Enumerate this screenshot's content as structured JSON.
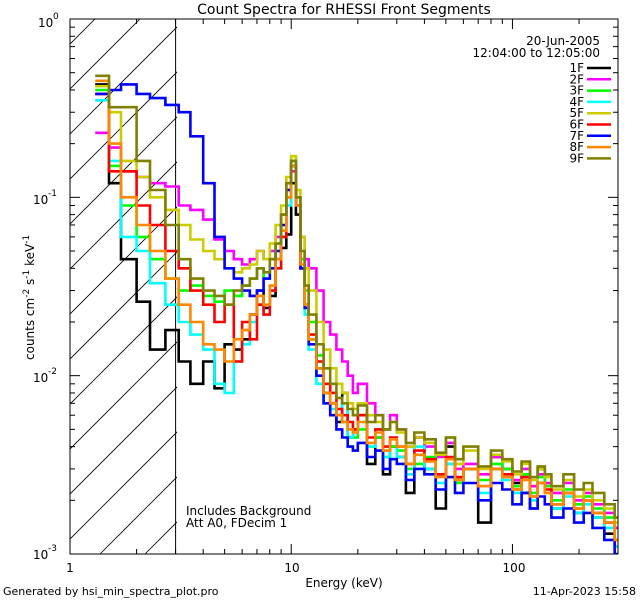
{
  "chart_data": {
    "type": "line",
    "title": "Count Spectra for RHESSI Front Segments",
    "xlabel": "Energy (keV)",
    "ylabel": "counts cm",
    "ylabel_sup1": "-2",
    "ylabel_mid": " s",
    "ylabel_sup2": "-1",
    "ylabel_end": " keV",
    "ylabel_sup3": "-1",
    "x_scale": "log",
    "y_scale": "log",
    "xlim": [
      1,
      300
    ],
    "ylim": [
      0.001,
      1
    ],
    "x_tick_labels": [
      {
        "value": 1,
        "label": "1"
      },
      {
        "value": 10,
        "label": "10"
      },
      {
        "value": 100,
        "label": "100"
      }
    ],
    "y_tick_labels": [
      {
        "value": 1,
        "base": "10",
        "exp": "0"
      },
      {
        "value": 0.1,
        "base": "10",
        "exp": "-1"
      },
      {
        "value": 0.01,
        "base": "10",
        "exp": "-2"
      },
      {
        "value": 0.001,
        "base": "10",
        "exp": "-3"
      }
    ],
    "hatched_region_max_energy": 3,
    "legend_position": "top-right",
    "date": "20-Jun-2005",
    "time_range": "12:04:00 to 12:05:00",
    "annotation_line1": "Includes Background",
    "annotation_line2": "Att A0, FDecim 1",
    "series": [
      {
        "name": "1F",
        "color": "#000000",
        "e": [
          1.3,
          1.5,
          1.7,
          2.0,
          2.3,
          2.7,
          3.1,
          3.5,
          4.0,
          4.5,
          5.0,
          5.5,
          6.0,
          6.5,
          7.0,
          7.5,
          8.0,
          8.5,
          9.0,
          9.5,
          10.0,
          10.5,
          11.0,
          11.5,
          12.0,
          13,
          14,
          15,
          16,
          17,
          18,
          19,
          20,
          22,
          24,
          26,
          28,
          30,
          33,
          36,
          40,
          45,
          50,
          55,
          60,
          70,
          80,
          90,
          100,
          110,
          120,
          130,
          140,
          150,
          170,
          190,
          210,
          230,
          260,
          290
        ],
        "v": [
          0.43,
          0.12,
          0.045,
          0.026,
          0.014,
          0.018,
          0.012,
          0.009,
          0.012,
          0.0085,
          0.015,
          0.014,
          0.016,
          0.022,
          0.03,
          0.024,
          0.028,
          0.045,
          0.052,
          0.062,
          0.12,
          0.08,
          0.04,
          0.025,
          0.016,
          0.011,
          0.008,
          0.007,
          0.0055,
          0.008,
          0.0045,
          0.005,
          0.006,
          0.0032,
          0.0045,
          0.0028,
          0.004,
          0.0035,
          0.0022,
          0.0045,
          0.003,
          0.0018,
          0.004,
          0.0026,
          0.003,
          0.0015,
          0.0035,
          0.003,
          0.0025,
          0.0022,
          0.0018,
          0.003,
          0.0024,
          0.0018,
          0.0022,
          0.0017,
          0.002,
          0.0016,
          0.0013,
          0.0011
        ]
      },
      {
        "name": "2F",
        "color": "#ff00ff",
        "e": [
          1.3,
          1.5,
          1.7,
          2.0,
          2.3,
          2.7,
          3.1,
          3.5,
          4.0,
          4.5,
          5.0,
          5.5,
          6.0,
          6.5,
          7.0,
          7.5,
          8.0,
          8.5,
          9.0,
          9.5,
          10.0,
          10.5,
          11.0,
          11.5,
          12.0,
          13,
          14,
          15,
          16,
          17,
          18,
          19,
          20,
          22,
          24,
          26,
          28,
          30,
          33,
          36,
          40,
          45,
          50,
          55,
          60,
          70,
          80,
          90,
          100,
          110,
          120,
          130,
          140,
          150,
          170,
          190,
          210,
          230,
          260,
          290
        ],
        "v": [
          0.23,
          0.19,
          0.14,
          0.13,
          0.12,
          0.115,
          0.09,
          0.085,
          0.075,
          0.058,
          0.05,
          0.045,
          0.042,
          0.045,
          0.05,
          0.045,
          0.05,
          0.06,
          0.08,
          0.12,
          0.14,
          0.1,
          0.06,
          0.045,
          0.04,
          0.03,
          0.02,
          0.017,
          0.014,
          0.012,
          0.01,
          0.008,
          0.009,
          0.007,
          0.006,
          0.005,
          0.006,
          0.005,
          0.004,
          0.0045,
          0.004,
          0.0035,
          0.0042,
          0.003,
          0.0032,
          0.0028,
          0.0035,
          0.003,
          0.0026,
          0.003,
          0.0024,
          0.0028,
          0.0025,
          0.0022,
          0.0025,
          0.002,
          0.0022,
          0.0019,
          0.0017,
          0.0014
        ]
      },
      {
        "name": "3F",
        "color": "#00ff00",
        "e": [
          1.3,
          1.5,
          1.7,
          2.0,
          2.3,
          2.7,
          3.1,
          3.5,
          4.0,
          4.5,
          5.0,
          5.5,
          6.0,
          6.5,
          7.0,
          7.5,
          8.0,
          8.5,
          9.0,
          9.5,
          10.0,
          10.5,
          11.0,
          11.5,
          12.0,
          13,
          14,
          15,
          16,
          17,
          18,
          19,
          20,
          22,
          24,
          26,
          28,
          30,
          33,
          36,
          40,
          45,
          50,
          55,
          60,
          70,
          80,
          90,
          100,
          110,
          120,
          130,
          140,
          150,
          170,
          190,
          210,
          230,
          260,
          290
        ],
        "v": [
          0.4,
          0.15,
          0.09,
          0.06,
          0.045,
          0.035,
          0.03,
          0.032,
          0.028,
          0.026,
          0.03,
          0.028,
          0.032,
          0.035,
          0.04,
          0.035,
          0.045,
          0.055,
          0.07,
          0.11,
          0.17,
          0.1,
          0.045,
          0.03,
          0.02,
          0.013,
          0.009,
          0.007,
          0.006,
          0.0055,
          0.005,
          0.0045,
          0.005,
          0.004,
          0.0045,
          0.0035,
          0.004,
          0.0038,
          0.003,
          0.0032,
          0.0035,
          0.0028,
          0.0032,
          0.0025,
          0.003,
          0.0026,
          0.0032,
          0.003,
          0.0024,
          0.0028,
          0.0022,
          0.0027,
          0.0024,
          0.002,
          0.0023,
          0.0019,
          0.0021,
          0.0018,
          0.0016,
          0.0012
        ]
      },
      {
        "name": "4F",
        "color": "#00ffff",
        "e": [
          1.3,
          1.5,
          1.7,
          2.0,
          2.3,
          2.7,
          3.1,
          3.5,
          4.0,
          4.5,
          5.0,
          5.5,
          6.0,
          6.5,
          7.0,
          7.5,
          8.0,
          8.5,
          9.0,
          9.5,
          10.0,
          10.5,
          11.0,
          11.5,
          12.0,
          13,
          14,
          15,
          16,
          17,
          18,
          19,
          20,
          22,
          24,
          26,
          28,
          30,
          33,
          36,
          40,
          45,
          50,
          55,
          60,
          70,
          80,
          90,
          100,
          110,
          120,
          130,
          140,
          150,
          170,
          190,
          210,
          230,
          260,
          290
        ],
        "v": [
          0.35,
          0.16,
          0.06,
          0.05,
          0.033,
          0.025,
          0.02,
          0.017,
          0.014,
          0.009,
          0.008,
          0.012,
          0.015,
          0.02,
          0.025,
          0.022,
          0.03,
          0.04,
          0.06,
          0.09,
          0.16,
          0.09,
          0.04,
          0.022,
          0.014,
          0.009,
          0.007,
          0.0065,
          0.006,
          0.007,
          0.0045,
          0.005,
          0.0055,
          0.004,
          0.005,
          0.0035,
          0.0045,
          0.0035,
          0.0028,
          0.004,
          0.003,
          0.0025,
          0.0032,
          0.0026,
          0.003,
          0.0022,
          0.003,
          0.0026,
          0.0022,
          0.0027,
          0.002,
          0.0025,
          0.0022,
          0.0018,
          0.0021,
          0.0017,
          0.0019,
          0.0016,
          0.0014,
          0.0011
        ]
      },
      {
        "name": "5F",
        "color": "#cccc00",
        "e": [
          1.3,
          1.5,
          1.7,
          2.0,
          2.3,
          2.7,
          3.1,
          3.5,
          4.0,
          4.5,
          5.0,
          5.5,
          6.0,
          6.5,
          7.0,
          7.5,
          8.0,
          8.5,
          9.0,
          9.5,
          10.0,
          10.5,
          11.0,
          11.5,
          12.0,
          13,
          14,
          15,
          16,
          17,
          18,
          19,
          20,
          22,
          24,
          26,
          28,
          30,
          33,
          36,
          40,
          45,
          50,
          55,
          60,
          70,
          80,
          90,
          100,
          110,
          120,
          130,
          140,
          150,
          170,
          190,
          210,
          230,
          260,
          290
        ],
        "v": [
          0.42,
          0.3,
          0.16,
          0.13,
          0.1,
          0.085,
          0.07,
          0.058,
          0.05,
          0.045,
          0.04,
          0.038,
          0.04,
          0.042,
          0.05,
          0.045,
          0.055,
          0.07,
          0.09,
          0.13,
          0.17,
          0.11,
          0.06,
          0.04,
          0.03,
          0.02,
          0.014,
          0.011,
          0.009,
          0.008,
          0.007,
          0.0065,
          0.007,
          0.006,
          0.0055,
          0.005,
          0.0055,
          0.0048,
          0.004,
          0.0045,
          0.0042,
          0.0036,
          0.0045,
          0.0032,
          0.0038,
          0.003,
          0.0036,
          0.0033,
          0.0028,
          0.0032,
          0.0026,
          0.003,
          0.0027,
          0.0023,
          0.0026,
          0.0021,
          0.0023,
          0.002,
          0.0018,
          0.0015
        ]
      },
      {
        "name": "6F",
        "color": "#ff0000",
        "e": [
          1.3,
          1.5,
          1.7,
          2.0,
          2.3,
          2.7,
          3.1,
          3.5,
          4.0,
          4.5,
          5.0,
          5.5,
          6.0,
          6.5,
          7.0,
          7.5,
          8.0,
          8.5,
          9.0,
          9.5,
          10.0,
          10.5,
          11.0,
          11.5,
          12.0,
          13,
          14,
          15,
          16,
          17,
          18,
          19,
          20,
          22,
          24,
          26,
          28,
          30,
          33,
          36,
          40,
          45,
          50,
          55,
          60,
          70,
          80,
          90,
          100,
          110,
          120,
          130,
          140,
          150,
          170,
          190,
          210,
          230,
          260,
          290
        ],
        "v": [
          0.38,
          0.14,
          0.14,
          0.09,
          0.07,
          0.05,
          0.04,
          0.03,
          0.025,
          0.02,
          0.025,
          0.012,
          0.02,
          0.016,
          0.025,
          0.022,
          0.03,
          0.04,
          0.06,
          0.1,
          0.15,
          0.09,
          0.04,
          0.025,
          0.017,
          0.012,
          0.009,
          0.008,
          0.0065,
          0.006,
          0.0055,
          0.005,
          0.006,
          0.0045,
          0.005,
          0.004,
          0.0045,
          0.004,
          0.0032,
          0.0038,
          0.0034,
          0.0028,
          0.0035,
          0.0027,
          0.003,
          0.0024,
          0.003,
          0.0028,
          0.0023,
          0.0027,
          0.0021,
          0.0025,
          0.0023,
          0.0019,
          0.0022,
          0.0018,
          0.002,
          0.0017,
          0.0015,
          0.0012
        ]
      },
      {
        "name": "7F",
        "color": "#0000ff",
        "e": [
          1.3,
          1.5,
          1.7,
          2.0,
          2.3,
          2.7,
          3.1,
          3.5,
          4.0,
          4.5,
          5.0,
          5.5,
          6.0,
          6.5,
          7.0,
          7.5,
          8.0,
          8.5,
          9.0,
          9.5,
          10.0,
          10.5,
          11.0,
          11.5,
          12.0,
          13,
          14,
          15,
          16,
          17,
          18,
          19,
          20,
          22,
          24,
          26,
          28,
          30,
          33,
          36,
          40,
          45,
          50,
          55,
          60,
          70,
          80,
          90,
          100,
          110,
          120,
          130,
          140,
          150,
          170,
          190,
          210,
          230,
          260,
          290
        ],
        "v": [
          0.38,
          0.4,
          0.43,
          0.38,
          0.36,
          0.33,
          0.3,
          0.22,
          0.12,
          0.06,
          0.04,
          0.035,
          0.03,
          0.028,
          0.03,
          0.035,
          0.04,
          0.05,
          0.07,
          0.11,
          0.15,
          0.09,
          0.04,
          0.024,
          0.015,
          0.01,
          0.007,
          0.006,
          0.005,
          0.0045,
          0.004,
          0.0038,
          0.0042,
          0.0035,
          0.0038,
          0.003,
          0.0034,
          0.0032,
          0.0026,
          0.003,
          0.0028,
          0.0023,
          0.0027,
          0.0022,
          0.0025,
          0.002,
          0.0025,
          0.0023,
          0.0019,
          0.0022,
          0.0018,
          0.0021,
          0.0019,
          0.0016,
          0.0018,
          0.0015,
          0.0017,
          0.0014,
          0.0012,
          0.001
        ]
      },
      {
        "name": "8F",
        "color": "#ff8800",
        "e": [
          1.3,
          1.5,
          1.7,
          2.0,
          2.3,
          2.7,
          3.1,
          3.5,
          4.0,
          4.5,
          5.0,
          5.5,
          6.0,
          6.5,
          7.0,
          7.5,
          8.0,
          8.5,
          9.0,
          9.5,
          10.0,
          10.5,
          11.0,
          11.5,
          12.0,
          13,
          14,
          15,
          16,
          17,
          18,
          19,
          20,
          22,
          24,
          26,
          28,
          30,
          33,
          36,
          40,
          45,
          50,
          55,
          60,
          70,
          80,
          90,
          100,
          110,
          120,
          130,
          140,
          150,
          170,
          190,
          210,
          230,
          260,
          290
        ],
        "v": [
          0.45,
          0.2,
          0.1,
          0.07,
          0.05,
          0.035,
          0.025,
          0.02,
          0.015,
          0.014,
          0.012,
          0.016,
          0.018,
          0.022,
          0.028,
          0.025,
          0.032,
          0.045,
          0.065,
          0.1,
          0.15,
          0.09,
          0.042,
          0.025,
          0.016,
          0.011,
          0.008,
          0.007,
          0.006,
          0.0055,
          0.005,
          0.0048,
          0.0055,
          0.0042,
          0.0048,
          0.0038,
          0.0044,
          0.004,
          0.0032,
          0.0036,
          0.0033,
          0.0027,
          0.0034,
          0.0026,
          0.003,
          0.0024,
          0.003,
          0.0027,
          0.0023,
          0.0026,
          0.0021,
          0.0025,
          0.0022,
          0.0019,
          0.0022,
          0.0018,
          0.002,
          0.0017,
          0.0015,
          0.0012
        ]
      },
      {
        "name": "9F",
        "color": "#808000",
        "e": [
          1.3,
          1.5,
          1.7,
          2.0,
          2.3,
          2.7,
          3.1,
          3.5,
          4.0,
          4.5,
          5.0,
          5.5,
          6.0,
          6.5,
          7.0,
          7.5,
          8.0,
          8.5,
          9.0,
          9.5,
          10.0,
          10.5,
          11.0,
          11.5,
          12.0,
          13,
          14,
          15,
          16,
          17,
          18,
          19,
          20,
          22,
          24,
          26,
          28,
          30,
          33,
          36,
          40,
          45,
          50,
          55,
          60,
          70,
          80,
          90,
          100,
          110,
          120,
          130,
          140,
          150,
          170,
          190,
          210,
          230,
          260,
          290
        ],
        "v": [
          0.48,
          0.32,
          0.32,
          0.16,
          0.11,
          0.07,
          0.045,
          0.035,
          0.03,
          0.028,
          0.025,
          0.03,
          0.032,
          0.035,
          0.04,
          0.038,
          0.045,
          0.055,
          0.08,
          0.12,
          0.16,
          0.1,
          0.05,
          0.032,
          0.022,
          0.015,
          0.011,
          0.009,
          0.0075,
          0.007,
          0.0065,
          0.006,
          0.0068,
          0.0055,
          0.006,
          0.005,
          0.0055,
          0.005,
          0.0042,
          0.0048,
          0.0044,
          0.0037,
          0.0045,
          0.0034,
          0.004,
          0.0031,
          0.0038,
          0.0034,
          0.0029,
          0.0033,
          0.0027,
          0.0031,
          0.0028,
          0.0024,
          0.0028,
          0.0023,
          0.0025,
          0.0022,
          0.0019,
          0.0016
        ]
      }
    ]
  },
  "footer": {
    "generated_by": "Generated by hsi_min_spectra_plot.pro",
    "timestamp": "11-Apr-2023 15:58"
  }
}
